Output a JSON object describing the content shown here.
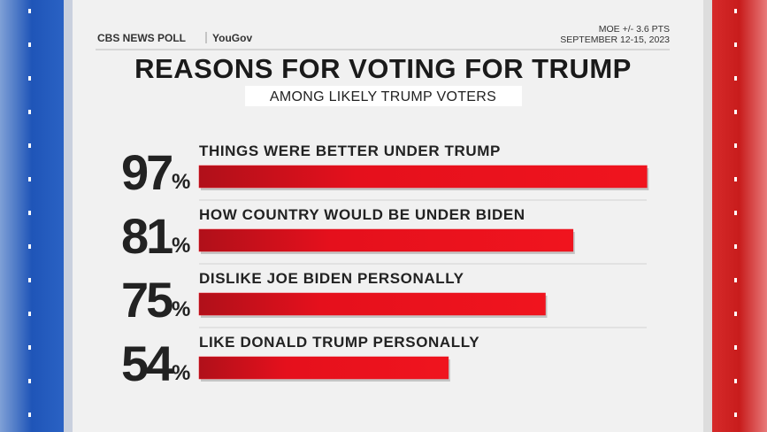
{
  "chart_data": {
    "type": "bar",
    "orientation": "horizontal",
    "source": "CBS NEWS POLL",
    "partner": "YouGov",
    "notes": [
      "MOE +/- 3.6 PTS",
      "SEPTEMBER 12-15, 2023"
    ],
    "title": "REASONS FOR VOTING FOR TRUMP",
    "subtitle": "AMONG LIKELY TRUMP VOTERS",
    "categories": [
      "THINGS WERE BETTER UNDER TRUMP",
      "HOW COUNTRY WOULD BE UNDER BIDEN",
      "DISLIKE JOE BIDEN PERSONALLY",
      "LIKE DONALD TRUMP PERSONALLY"
    ],
    "values": [
      97,
      81,
      75,
      54
    ],
    "unit": "%",
    "color": "#e5101c",
    "xlim": [
      0,
      100
    ]
  }
}
